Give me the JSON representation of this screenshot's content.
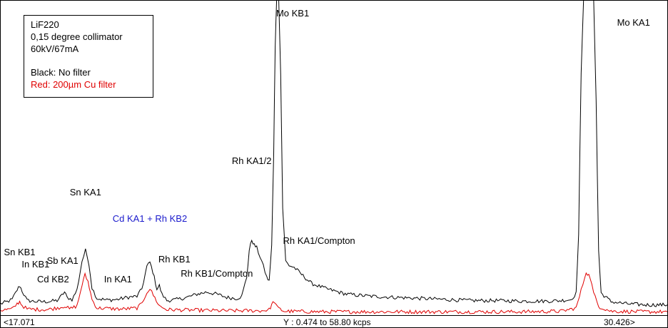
{
  "info": {
    "crystal": "LiF220",
    "collimator": "0,15 degree collimator",
    "power": "60kV/67mA",
    "legend_black": "Black: No filter",
    "legend_red": "Red: 200µm Cu filter"
  },
  "axis": {
    "x_min_label": "<17.071",
    "x_max_label": "30.426>",
    "y_label": "Y : 0.474 to 58.80  kcps"
  },
  "colors": {
    "no_filter": "#000000",
    "cu_filter": "#e00000",
    "highlight_label": "#1a1acc"
  },
  "chart_data": {
    "type": "line",
    "x_range": [
      17.071,
      30.426
    ],
    "y_range": [
      0.474,
      58.8
    ],
    "y_unit": "kcps",
    "series": [
      {
        "name": "Black: No filter",
        "color": "#000000",
        "points": [
          [
            17.071,
            2.0
          ],
          [
            17.2,
            2.4
          ],
          [
            17.3,
            2.8
          ],
          [
            17.4,
            4.6
          ],
          [
            17.45,
            5.4
          ],
          [
            17.5,
            4.4
          ],
          [
            17.6,
            2.6
          ],
          [
            17.8,
            2.4
          ],
          [
            18.0,
            2.4
          ],
          [
            18.2,
            2.6
          ],
          [
            18.3,
            3.6
          ],
          [
            18.35,
            4.2
          ],
          [
            18.4,
            3.2
          ],
          [
            18.5,
            2.8
          ],
          [
            18.6,
            4.6
          ],
          [
            18.7,
            10.0
          ],
          [
            18.77,
            12.0
          ],
          [
            18.84,
            9.5
          ],
          [
            18.9,
            5.0
          ],
          [
            19.0,
            3.0
          ],
          [
            19.2,
            2.7
          ],
          [
            19.4,
            2.8
          ],
          [
            19.6,
            3.2
          ],
          [
            19.8,
            3.4
          ],
          [
            19.9,
            4.8
          ],
          [
            20.0,
            9.0
          ],
          [
            20.06,
            9.8
          ],
          [
            20.12,
            8.0
          ],
          [
            20.2,
            4.8
          ],
          [
            20.25,
            5.4
          ],
          [
            20.3,
            3.8
          ],
          [
            20.4,
            2.6
          ],
          [
            20.6,
            2.8
          ],
          [
            20.8,
            3.2
          ],
          [
            21.0,
            3.8
          ],
          [
            21.2,
            4.2
          ],
          [
            21.4,
            3.8
          ],
          [
            21.6,
            3.2
          ],
          [
            21.8,
            3.0
          ],
          [
            21.9,
            3.4
          ],
          [
            22.0,
            7.0
          ],
          [
            22.05,
            12.0
          ],
          [
            22.1,
            14.0
          ],
          [
            22.15,
            13.0
          ],
          [
            22.2,
            12.5
          ],
          [
            22.3,
            10.0
          ],
          [
            22.4,
            7.0
          ],
          [
            22.45,
            6.2
          ],
          [
            22.5,
            13.0
          ],
          [
            22.54,
            30.0
          ],
          [
            22.57,
            50.0
          ],
          [
            22.6,
            60.0
          ],
          [
            22.64,
            60.0
          ],
          [
            22.68,
            45.0
          ],
          [
            22.72,
            20.0
          ],
          [
            22.78,
            10.0
          ],
          [
            22.85,
            9.2
          ],
          [
            22.95,
            8.8
          ],
          [
            23.1,
            7.5
          ],
          [
            23.3,
            5.8
          ],
          [
            23.6,
            4.8
          ],
          [
            24.0,
            3.8
          ],
          [
            24.5,
            3.4
          ],
          [
            25.0,
            3.2
          ],
          [
            25.5,
            3.0
          ],
          [
            26.0,
            2.8
          ],
          [
            26.5,
            2.6
          ],
          [
            27.0,
            2.6
          ],
          [
            27.5,
            2.5
          ],
          [
            28.0,
            2.5
          ],
          [
            28.3,
            2.6
          ],
          [
            28.5,
            2.8
          ],
          [
            28.6,
            4.0
          ],
          [
            28.65,
            15.0
          ],
          [
            28.7,
            45.0
          ],
          [
            28.75,
            60.0
          ],
          [
            28.95,
            60.0
          ],
          [
            29.0,
            40.0
          ],
          [
            29.05,
            12.0
          ],
          [
            29.1,
            4.0
          ],
          [
            29.3,
            2.4
          ],
          [
            29.6,
            2.0
          ],
          [
            30.0,
            1.8
          ],
          [
            30.426,
            1.8
          ]
        ]
      },
      {
        "name": "Red: 200µm Cu filter",
        "color": "#e00000",
        "points": [
          [
            17.071,
            0.8
          ],
          [
            17.3,
            1.0
          ],
          [
            17.4,
            2.0
          ],
          [
            17.45,
            2.4
          ],
          [
            17.5,
            1.7
          ],
          [
            17.6,
            1.0
          ],
          [
            18.0,
            0.9
          ],
          [
            18.3,
            1.4
          ],
          [
            18.35,
            1.6
          ],
          [
            18.45,
            1.0
          ],
          [
            18.6,
            1.6
          ],
          [
            18.7,
            5.5
          ],
          [
            18.76,
            7.4
          ],
          [
            18.82,
            6.2
          ],
          [
            18.9,
            2.8
          ],
          [
            19.0,
            1.2
          ],
          [
            19.5,
            1.0
          ],
          [
            19.8,
            1.2
          ],
          [
            19.9,
            2.0
          ],
          [
            20.0,
            4.2
          ],
          [
            20.06,
            4.8
          ],
          [
            20.13,
            3.6
          ],
          [
            20.25,
            1.6
          ],
          [
            20.4,
            0.9
          ],
          [
            21.0,
            0.8
          ],
          [
            21.5,
            0.7
          ],
          [
            22.0,
            0.7
          ],
          [
            22.3,
            0.7
          ],
          [
            22.45,
            0.9
          ],
          [
            22.5,
            1.8
          ],
          [
            22.55,
            2.5
          ],
          [
            22.62,
            1.2
          ],
          [
            22.75,
            0.6
          ],
          [
            23.5,
            0.5
          ],
          [
            24.5,
            0.5
          ],
          [
            25.5,
            0.5
          ],
          [
            26.5,
            0.5
          ],
          [
            27.5,
            0.5
          ],
          [
            28.3,
            0.6
          ],
          [
            28.6,
            1.2
          ],
          [
            28.7,
            4.5
          ],
          [
            28.8,
            8.0
          ],
          [
            28.88,
            7.0
          ],
          [
            28.95,
            4.0
          ],
          [
            29.05,
            1.5
          ],
          [
            29.3,
            0.6
          ],
          [
            30.0,
            0.5
          ],
          [
            30.426,
            0.5
          ]
        ]
      }
    ],
    "annotations": [
      {
        "text": "Sn KB1",
        "x": 17.45
      },
      {
        "text": "In KB1",
        "x": 17.77
      },
      {
        "text": "Cd KB2",
        "x": 18.12
      },
      {
        "text": "Sb KA1",
        "x": 18.31
      },
      {
        "text": "Sn KA1",
        "x": 18.77
      },
      {
        "text": "In KA1",
        "x": 19.42
      },
      {
        "text": "Cd KA1 + Rh KB2",
        "x": 20.06,
        "color": "#1a1acc"
      },
      {
        "text": "Rh KB1",
        "x": 20.55
      },
      {
        "text": "Rh KB1/Compton",
        "x": 21.4
      },
      {
        "text": "Rh KA1/2",
        "x": 22.1
      },
      {
        "text": "Mo KB1",
        "x": 22.92
      },
      {
        "text": "Rh KA1/Compton",
        "x": 23.45
      },
      {
        "text": "Mo KA1",
        "x": 29.75
      }
    ]
  }
}
